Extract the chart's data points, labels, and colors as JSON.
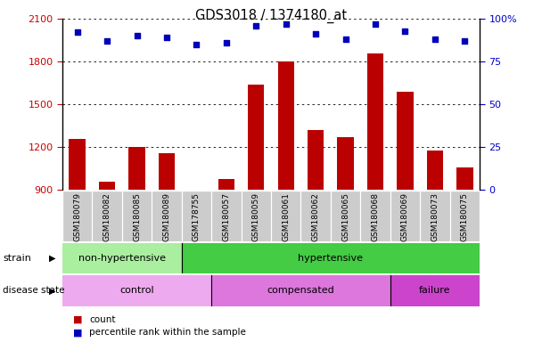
{
  "title": "GDS3018 / 1374180_at",
  "samples": [
    "GSM180079",
    "GSM180082",
    "GSM180085",
    "GSM180089",
    "GSM178755",
    "GSM180057",
    "GSM180059",
    "GSM180061",
    "GSM180062",
    "GSM180065",
    "GSM180068",
    "GSM180069",
    "GSM180073",
    "GSM180075"
  ],
  "counts": [
    1255,
    960,
    1200,
    1160,
    870,
    975,
    1640,
    1800,
    1320,
    1270,
    1860,
    1590,
    1175,
    1060
  ],
  "percentiles": [
    92,
    87,
    90,
    89,
    85,
    86,
    96,
    97,
    91,
    88,
    97,
    93,
    88,
    87
  ],
  "ylim_left": [
    900,
    2100
  ],
  "ylim_right": [
    0,
    100
  ],
  "yticks_left": [
    900,
    1200,
    1500,
    1800,
    2100
  ],
  "yticks_right": [
    0,
    25,
    50,
    75,
    100
  ],
  "ytick_right_labels": [
    "0",
    "25",
    "50",
    "75",
    "100%"
  ],
  "bar_color": "#bb0000",
  "dot_color": "#0000bb",
  "strain_groups": [
    {
      "label": "non-hypertensive",
      "start": 0,
      "end": 4,
      "color": "#aaeea0"
    },
    {
      "label": "hypertensive",
      "start": 4,
      "end": 14,
      "color": "#44cc44"
    }
  ],
  "disease_groups": [
    {
      "label": "control",
      "start": 0,
      "end": 5,
      "color": "#eeaaee"
    },
    {
      "label": "compensated",
      "start": 5,
      "end": 11,
      "color": "#dd77dd"
    },
    {
      "label": "failure",
      "start": 11,
      "end": 14,
      "color": "#cc44cc"
    }
  ],
  "strain_label": "strain",
  "disease_label": "disease state",
  "legend_count": "count",
  "legend_percentile": "percentile rank within the sample",
  "tick_bg_color": "#cccccc",
  "left_axis_color": "#cc0000",
  "right_axis_color": "#0000cc",
  "left_spine_color": "#000000",
  "right_spine_color": "#000000"
}
